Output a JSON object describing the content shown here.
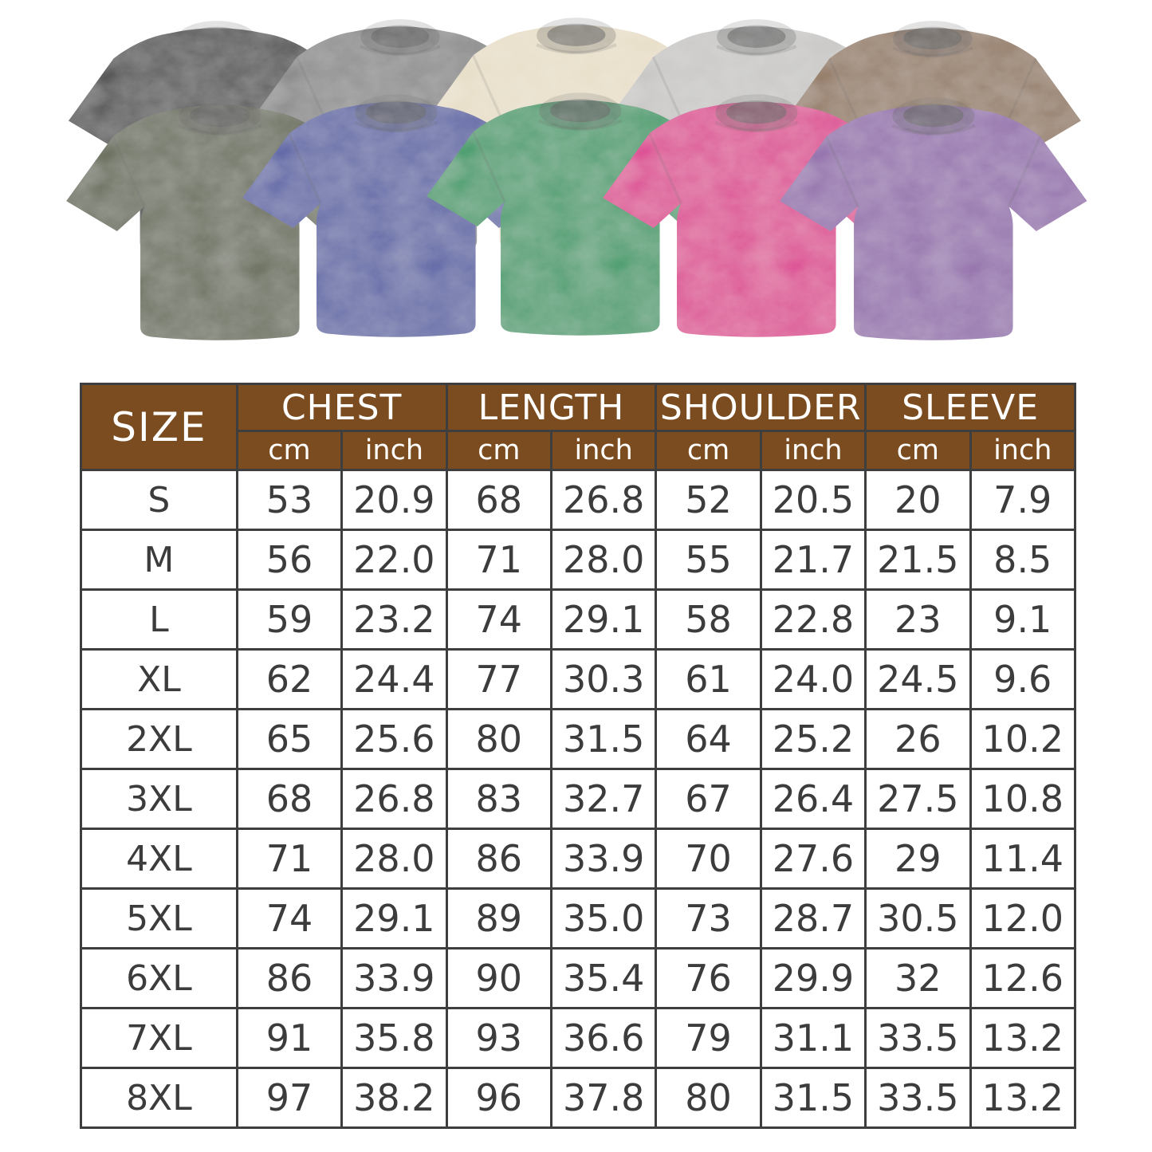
{
  "shirts": {
    "back_row": [
      {
        "name": "black",
        "color": "#2e2e2e"
      },
      {
        "name": "gray",
        "color": "#7f7f7f"
      },
      {
        "name": "beige",
        "color": "#e6dcc4"
      },
      {
        "name": "light-gray",
        "color": "#c4c3c1"
      },
      {
        "name": "brown",
        "color": "#8a6c50"
      }
    ],
    "front_row": [
      {
        "name": "army-green",
        "color": "#545b40"
      },
      {
        "name": "blue",
        "color": "#44509e"
      },
      {
        "name": "green",
        "color": "#11945a"
      },
      {
        "name": "rose-pink",
        "color": "#da2089"
      },
      {
        "name": "purple",
        "color": "#8a5ea6"
      }
    ]
  },
  "size_chart": {
    "styles": {
      "header_bg": "#7a4c1f",
      "header_text": "#ffffff",
      "border": "#3e3e3e",
      "text": "#3c3c3c"
    },
    "header": {
      "size_label": "SIZE",
      "groups": [
        "CHEST",
        "LENGTH",
        "SHOULDER",
        "SLEEVE"
      ],
      "unit_cm": "cm",
      "unit_inch": "inch"
    },
    "rows": [
      {
        "size": "S",
        "values": [
          "53",
          "20.9",
          "68",
          "26.8",
          "52",
          "20.5",
          "20",
          "7.9"
        ]
      },
      {
        "size": "M",
        "values": [
          "56",
          "22.0",
          "71",
          "28.0",
          "55",
          "21.7",
          "21.5",
          "8.5"
        ]
      },
      {
        "size": "L",
        "values": [
          "59",
          "23.2",
          "74",
          "29.1",
          "58",
          "22.8",
          "23",
          "9.1"
        ]
      },
      {
        "size": "XL",
        "values": [
          "62",
          "24.4",
          "77",
          "30.3",
          "61",
          "24.0",
          "24.5",
          "9.6"
        ]
      },
      {
        "size": "2XL",
        "values": [
          "65",
          "25.6",
          "80",
          "31.5",
          "64",
          "25.2",
          "26",
          "10.2"
        ]
      },
      {
        "size": "3XL",
        "values": [
          "68",
          "26.8",
          "83",
          "32.7",
          "67",
          "26.4",
          "27.5",
          "10.8"
        ]
      },
      {
        "size": "4XL",
        "values": [
          "71",
          "28.0",
          "86",
          "33.9",
          "70",
          "27.6",
          "29",
          "11.4"
        ]
      },
      {
        "size": "5XL",
        "values": [
          "74",
          "29.1",
          "89",
          "35.0",
          "73",
          "28.7",
          "30.5",
          "12.0"
        ]
      },
      {
        "size": "6XL",
        "values": [
          "86",
          "33.9",
          "90",
          "35.4",
          "76",
          "29.9",
          "32",
          "12.6"
        ]
      },
      {
        "size": "7XL",
        "values": [
          "91",
          "35.8",
          "93",
          "36.6",
          "79",
          "31.1",
          "33.5",
          "13.2"
        ]
      },
      {
        "size": "8XL",
        "values": [
          "97",
          "38.2",
          "96",
          "37.8",
          "80",
          "31.5",
          "33.5",
          "13.2"
        ]
      }
    ]
  }
}
